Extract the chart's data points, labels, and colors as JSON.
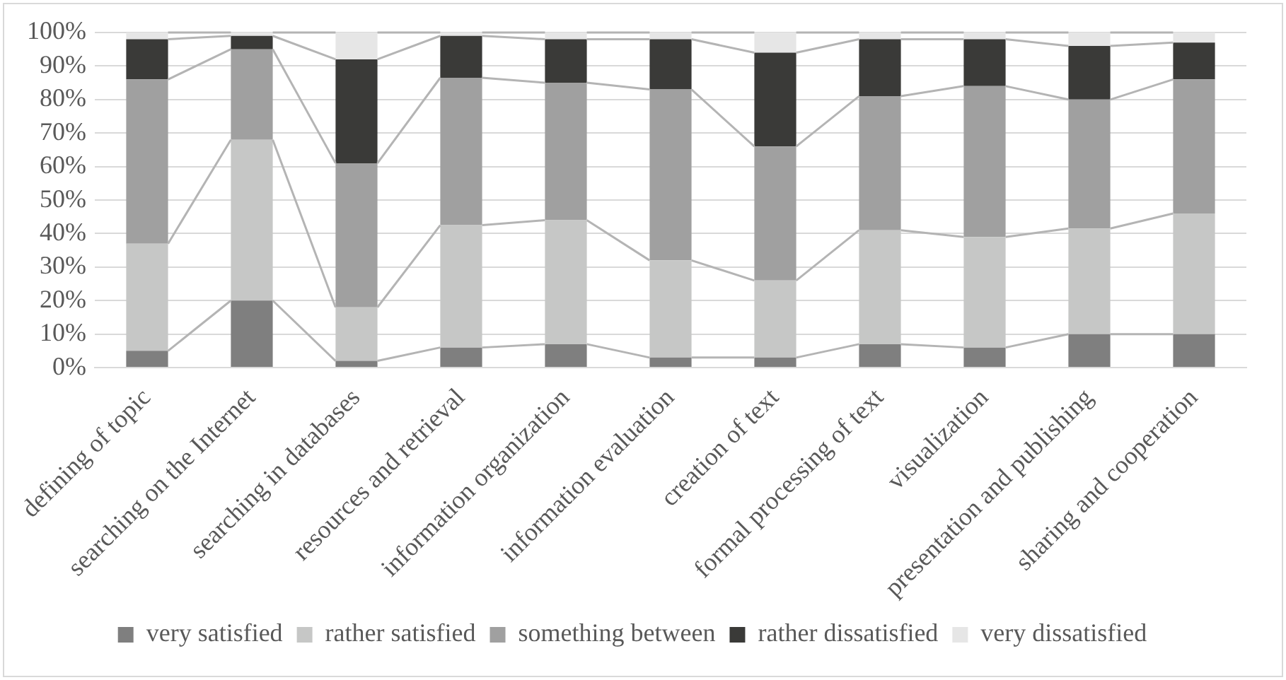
{
  "chart_data": {
    "type": "bar",
    "stacked": true,
    "categories": [
      "defining of topic",
      "searching on the Internet",
      "searching in databases",
      "resources and retrieval",
      "information organization",
      "information evaluation",
      "creation of text",
      "formal processing of text",
      "visualization",
      "presentation and publishing",
      "sharing and cooperation"
    ],
    "series": [
      {
        "name": "very satisfied",
        "color": "#7f7f7f",
        "values": [
          5,
          20,
          2,
          6,
          7,
          3,
          3,
          7,
          6,
          10,
          10
        ]
      },
      {
        "name": "rather satisfied",
        "color": "#c6c7c6",
        "values": [
          32,
          48,
          16,
          36.5,
          37,
          29,
          23,
          34,
          33,
          31.5,
          36
        ]
      },
      {
        "name": "something between",
        "color": "#a0a0a0",
        "values": [
          49,
          27,
          43,
          44,
          41,
          51,
          40,
          40,
          45,
          38.5,
          40
        ]
      },
      {
        "name": "rather dissatisfied",
        "color": "#3a3a38",
        "values": [
          12,
          4,
          31,
          12.5,
          13,
          15,
          28,
          17,
          14,
          16,
          11
        ]
      },
      {
        "name": "very dissatisfied",
        "color": "#e6e6e6",
        "values": [
          2,
          1,
          8,
          1,
          2,
          2,
          6,
          2,
          2,
          4,
          3
        ]
      }
    ],
    "ylim": [
      0,
      100
    ],
    "yticks": [
      {
        "value": 0,
        "label": "0%"
      },
      {
        "value": 10,
        "label": "10%"
      },
      {
        "value": 20,
        "label": "20%"
      },
      {
        "value": 30,
        "label": "30%"
      },
      {
        "value": 40,
        "label": "40%"
      },
      {
        "value": 50,
        "label": "50%"
      },
      {
        "value": 60,
        "label": "60%"
      },
      {
        "value": 70,
        "label": "70%"
      },
      {
        "value": 80,
        "label": "80%"
      },
      {
        "value": 90,
        "label": "90%"
      },
      {
        "value": 100,
        "label": "100%"
      }
    ],
    "grid": "y",
    "legend": "bottom"
  }
}
